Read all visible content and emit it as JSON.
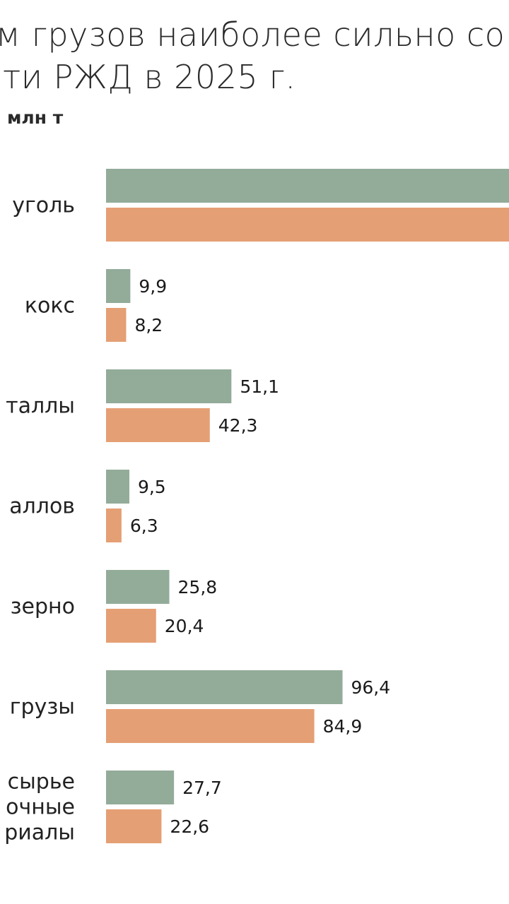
{
  "title_lines": [
    "м грузов наиболее сильно со",
    "ти РЖД в 2025 г."
  ],
  "unit": "млн т",
  "colors": {
    "series_1": "#93ab99",
    "series_2": "#e59f74"
  },
  "chart_data": {
    "type": "bar",
    "orientation": "horizontal",
    "categories": [
      [
        "уголь"
      ],
      [
        "кокс"
      ],
      [
        "таллы"
      ],
      [
        "аллов"
      ],
      [
        "зерно"
      ],
      [
        "грузы"
      ],
      [
        "сырье",
        "очные",
        "риалы"
      ]
    ],
    "series": [
      {
        "color": "#93ab99",
        "values": [
          null,
          9.9,
          51.1,
          9.5,
          25.8,
          96.4,
          27.7
        ],
        "labels": [
          "",
          "9,9",
          "51,1",
          "9,5",
          "25,8",
          "96,4",
          "27,7"
        ]
      },
      {
        "color": "#e59f74",
        "values": [
          null,
          8.2,
          42.3,
          6.3,
          20.4,
          84.9,
          22.6
        ],
        "labels": [
          "",
          "8,2",
          "42,3",
          "6,3",
          "20,4",
          "84,9",
          "22,6"
        ]
      }
    ],
    "truncated_bars": [
      0
    ],
    "xlim": [
      0,
      200
    ],
    "grid": false,
    "legend": "none"
  }
}
